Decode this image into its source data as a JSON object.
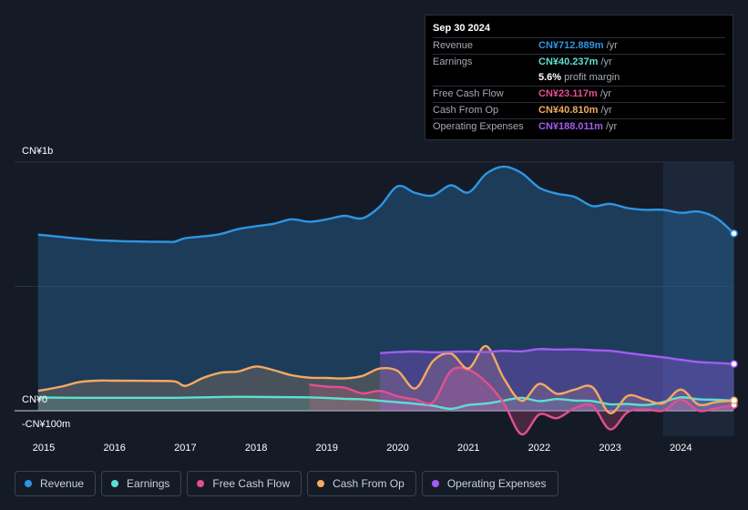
{
  "tooltip": {
    "date": "Sep 30 2024",
    "rows": [
      {
        "label": "Revenue",
        "value": "CN¥712.889m",
        "unit": "/yr",
        "color": "#2f95e3"
      },
      {
        "label": "Earnings",
        "value": "CN¥40.237m",
        "unit": "/yr",
        "color": "#5ce0cf"
      },
      {
        "label": "",
        "value": "5.6%",
        "unit": "profit margin",
        "color": "#ffffff"
      },
      {
        "label": "Free Cash Flow",
        "value": "CN¥23.117m",
        "unit": "/yr",
        "color": "#e2508f"
      },
      {
        "label": "Cash From Op",
        "value": "CN¥40.810m",
        "unit": "/yr",
        "color": "#f5a962"
      },
      {
        "label": "Operating Expenses",
        "value": "CN¥188.011m",
        "unit": "/yr",
        "color": "#a45bf5"
      }
    ]
  },
  "axis": {
    "y_top_label": "CN¥1b",
    "y_zero_label": "CN¥0",
    "y_bottom_label": "-CN¥100m"
  },
  "legend": [
    {
      "label": "Revenue",
      "color": "#2f95e3"
    },
    {
      "label": "Earnings",
      "color": "#5ce0cf"
    },
    {
      "label": "Free Cash Flow",
      "color": "#e2508f"
    },
    {
      "label": "Cash From Op",
      "color": "#f5a962"
    },
    {
      "label": "Operating Expenses",
      "color": "#a45bf5"
    }
  ],
  "chart_data": {
    "type": "area",
    "title": "",
    "xlabel": "",
    "ylabel": "",
    "units": "CN¥ millions",
    "ylim": [
      -100,
      1000
    ],
    "x_ticks": [
      "2015",
      "2016",
      "2017",
      "2018",
      "2019",
      "2020",
      "2021",
      "2022",
      "2023",
      "2024"
    ],
    "x_range": [
      2014.92,
      2024.75
    ],
    "highlight_range": [
      2023.75,
      2024.75
    ],
    "series": [
      {
        "name": "Revenue",
        "color": "#2f95e3",
        "x": [
          2014.92,
          2015.25,
          2015.5,
          2015.75,
          2016.0,
          2016.25,
          2016.5,
          2016.75,
          2016.85,
          2017.0,
          2017.25,
          2017.5,
          2017.75,
          2018.0,
          2018.25,
          2018.5,
          2018.75,
          2019.0,
          2019.25,
          2019.5,
          2019.75,
          2020.0,
          2020.25,
          2020.5,
          2020.75,
          2021.0,
          2021.25,
          2021.5,
          2021.75,
          2022.0,
          2022.25,
          2022.5,
          2022.75,
          2023.0,
          2023.25,
          2023.5,
          2023.75,
          2024.0,
          2024.25,
          2024.5,
          2024.75
        ],
        "values": [
          708,
          699,
          692,
          686,
          683,
          681,
          680,
          679,
          680,
          694,
          701,
          711,
          731,
          742,
          752,
          770,
          760,
          770,
          784,
          774,
          822,
          903,
          876,
          866,
          907,
          878,
          953,
          982,
          956,
          897,
          873,
          860,
          823,
          832,
          815,
          808,
          808,
          796,
          801,
          775,
          713
        ]
      },
      {
        "name": "Earnings",
        "color": "#5ce0cf",
        "x": [
          2014.92,
          2015.5,
          2016.0,
          2016.5,
          2016.85,
          2017.25,
          2017.75,
          2018.25,
          2018.75,
          2019.25,
          2019.5,
          2019.75,
          2020.0,
          2020.25,
          2020.5,
          2020.75,
          2021.0,
          2021.25,
          2021.5,
          2021.75,
          2022.0,
          2022.25,
          2022.5,
          2022.75,
          2023.0,
          2023.25,
          2023.5,
          2023.75,
          2024.0,
          2024.25,
          2024.5,
          2024.75
        ],
        "values": [
          53,
          52,
          52,
          52,
          52,
          54,
          56,
          55,
          54,
          48,
          46,
          40,
          34,
          28,
          20,
          8,
          23,
          29,
          41,
          52,
          39,
          47,
          41,
          39,
          26,
          27,
          23,
          35,
          54,
          46,
          44,
          40
        ]
      },
      {
        "name": "Free Cash Flow",
        "color": "#e2508f",
        "x": [
          2018.75,
          2019.0,
          2019.25,
          2019.5,
          2019.75,
          2020.0,
          2020.25,
          2020.5,
          2020.75,
          2021.0,
          2021.25,
          2021.5,
          2021.75,
          2022.0,
          2022.25,
          2022.5,
          2022.75,
          2023.0,
          2023.25,
          2023.5,
          2023.75,
          2024.0,
          2024.25,
          2024.5,
          2024.75
        ],
        "values": [
          105,
          97,
          93,
          70,
          80,
          58,
          45,
          35,
          160,
          165,
          115,
          30,
          -95,
          -15,
          -30,
          10,
          20,
          -75,
          -5,
          5,
          0,
          45,
          0,
          10,
          23
        ]
      },
      {
        "name": "Cash From Op",
        "color": "#f5a962",
        "x": [
          2014.92,
          2015.25,
          2015.5,
          2015.75,
          2016.0,
          2016.5,
          2016.85,
          2017.0,
          2017.25,
          2017.5,
          2017.75,
          2018.0,
          2018.25,
          2018.5,
          2018.75,
          2019.0,
          2019.25,
          2019.5,
          2019.75,
          2020.0,
          2020.25,
          2020.5,
          2020.75,
          2021.0,
          2021.25,
          2021.5,
          2021.75,
          2022.0,
          2022.25,
          2022.5,
          2022.75,
          2023.0,
          2023.25,
          2023.5,
          2023.75,
          2024.0,
          2024.25,
          2024.5,
          2024.75
        ],
        "values": [
          80,
          97,
          115,
          121,
          121,
          120,
          118,
          100,
          132,
          153,
          158,
          178,
          163,
          143,
          133,
          132,
          130,
          140,
          170,
          160,
          90,
          200,
          230,
          170,
          260,
          130,
          40,
          108,
          68,
          85,
          95,
          -10,
          60,
          45,
          30,
          85,
          25,
          35,
          41
        ]
      },
      {
        "name": "Operating Expenses",
        "color": "#a45bf5",
        "x": [
          2019.75,
          2020.0,
          2020.25,
          2020.5,
          2020.75,
          2021.0,
          2021.25,
          2021.5,
          2021.75,
          2022.0,
          2022.25,
          2022.5,
          2022.75,
          2023.0,
          2023.25,
          2023.5,
          2023.75,
          2024.0,
          2024.25,
          2024.5,
          2024.75
        ],
        "values": [
          232,
          236,
          238,
          235,
          237,
          238,
          236,
          241,
          239,
          248,
          246,
          247,
          244,
          241,
          232,
          223,
          215,
          205,
          196,
          192,
          188
        ]
      }
    ]
  }
}
